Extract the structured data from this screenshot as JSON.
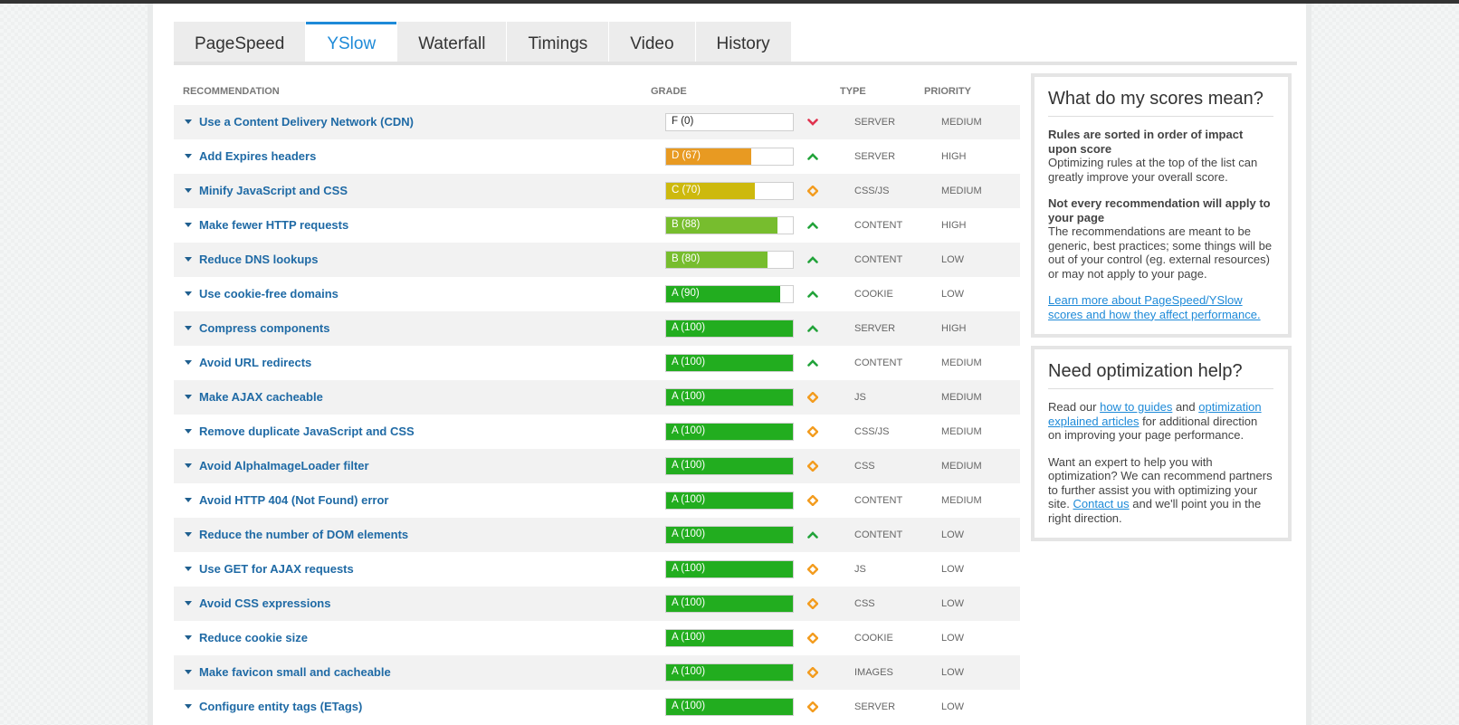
{
  "tabs": [
    {
      "label": "PageSpeed",
      "active": false
    },
    {
      "label": "YSlow",
      "active": true
    },
    {
      "label": "Waterfall",
      "active": false
    },
    {
      "label": "Timings",
      "active": false
    },
    {
      "label": "Video",
      "active": false
    },
    {
      "label": "History",
      "active": false
    }
  ],
  "table": {
    "headers": {
      "recommendation": "RECOMMENDATION",
      "grade": "GRADE",
      "type": "TYPE",
      "priority": "PRIORITY"
    },
    "rows": [
      {
        "name": "Use a Content Delivery Network (CDN)",
        "grade": "F (0)",
        "score": 0,
        "color": "#ffffff",
        "trend": "down",
        "type": "SERVER",
        "priority": "MEDIUM"
      },
      {
        "name": "Add Expires headers",
        "grade": "D (67)",
        "score": 67,
        "color": "#e89a22",
        "trend": "up",
        "type": "SERVER",
        "priority": "HIGH"
      },
      {
        "name": "Minify JavaScript and CSS",
        "grade": "C (70)",
        "score": 70,
        "color": "#cdb90d",
        "trend": "neutral",
        "type": "CSS/JS",
        "priority": "MEDIUM"
      },
      {
        "name": "Make fewer HTTP requests",
        "grade": "B (88)",
        "score": 88,
        "color": "#77bd2e",
        "trend": "up",
        "type": "CONTENT",
        "priority": "HIGH"
      },
      {
        "name": "Reduce DNS lookups",
        "grade": "B (80)",
        "score": 80,
        "color": "#77bd2e",
        "trend": "up",
        "type": "CONTENT",
        "priority": "LOW"
      },
      {
        "name": "Use cookie-free domains",
        "grade": "A (90)",
        "score": 90,
        "color": "#22ad1f",
        "trend": "up",
        "type": "COOKIE",
        "priority": "LOW"
      },
      {
        "name": "Compress components",
        "grade": "A (100)",
        "score": 100,
        "color": "#22ad1f",
        "trend": "up",
        "type": "SERVER",
        "priority": "HIGH"
      },
      {
        "name": "Avoid URL redirects",
        "grade": "A (100)",
        "score": 100,
        "color": "#22ad1f",
        "trend": "up",
        "type": "CONTENT",
        "priority": "MEDIUM"
      },
      {
        "name": "Make AJAX cacheable",
        "grade": "A (100)",
        "score": 100,
        "color": "#22ad1f",
        "trend": "neutral",
        "type": "JS",
        "priority": "MEDIUM"
      },
      {
        "name": "Remove duplicate JavaScript and CSS",
        "grade": "A (100)",
        "score": 100,
        "color": "#22ad1f",
        "trend": "neutral",
        "type": "CSS/JS",
        "priority": "MEDIUM"
      },
      {
        "name": "Avoid AlphaImageLoader filter",
        "grade": "A (100)",
        "score": 100,
        "color": "#22ad1f",
        "trend": "neutral",
        "type": "CSS",
        "priority": "MEDIUM"
      },
      {
        "name": "Avoid HTTP 404 (Not Found) error",
        "grade": "A (100)",
        "score": 100,
        "color": "#22ad1f",
        "trend": "neutral",
        "type": "CONTENT",
        "priority": "MEDIUM"
      },
      {
        "name": "Reduce the number of DOM elements",
        "grade": "A (100)",
        "score": 100,
        "color": "#22ad1f",
        "trend": "up",
        "type": "CONTENT",
        "priority": "LOW"
      },
      {
        "name": "Use GET for AJAX requests",
        "grade": "A (100)",
        "score": 100,
        "color": "#22ad1f",
        "trend": "neutral",
        "type": "JS",
        "priority": "LOW"
      },
      {
        "name": "Avoid CSS expressions",
        "grade": "A (100)",
        "score": 100,
        "color": "#22ad1f",
        "trend": "neutral",
        "type": "CSS",
        "priority": "LOW"
      },
      {
        "name": "Reduce cookie size",
        "grade": "A (100)",
        "score": 100,
        "color": "#22ad1f",
        "trend": "neutral",
        "type": "COOKIE",
        "priority": "LOW"
      },
      {
        "name": "Make favicon small and cacheable",
        "grade": "A (100)",
        "score": 100,
        "color": "#22ad1f",
        "trend": "neutral",
        "type": "IMAGES",
        "priority": "LOW"
      },
      {
        "name": "Configure entity tags (ETags)",
        "grade": "A (100)",
        "score": 100,
        "color": "#22ad1f",
        "trend": "neutral",
        "type": "SERVER",
        "priority": "LOW"
      }
    ]
  },
  "trend_icons": {
    "up": "chevron-up-icon",
    "down": "chevron-down-icon",
    "neutral": "diamond-icon"
  },
  "trend_colors": {
    "up": "#22a33a",
    "down": "#e0334f",
    "neutral": "#f39c1f"
  },
  "scores_box": {
    "title": "What do my scores mean?",
    "p1_bold": "Rules are sorted in order of impact upon score",
    "p1_text": "Optimizing rules at the top of the list can greatly improve your overall score.",
    "p2_bold": "Not every recommendation will apply to your page",
    "p2_text": "The recommendations are meant to be generic, best practices; some things will be out of your control (eg. external resources) or may not apply to your page.",
    "link": "Learn more about PageSpeed/YSlow scores and how they affect performance."
  },
  "help_box": {
    "title": "Need optimization help?",
    "p1_a": "Read our ",
    "p1_link1": "how to guides",
    "p1_b": " and ",
    "p1_link2": "optimization explained articles",
    "p1_c": " for additional direction on improving your page performance.",
    "p2_a": "Want an expert to help you with optimization? We can recommend partners to further assist you with optimizing your site. ",
    "p2_link": "Contact us",
    "p2_b": " and we'll point you in the right direction."
  }
}
